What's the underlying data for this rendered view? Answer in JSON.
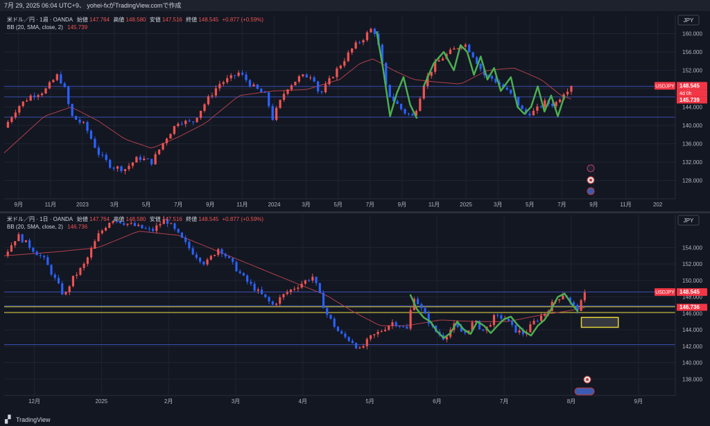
{
  "header": {
    "caption": "7月 29, 2025 06:04 UTC+9、 yohei-fxがTradingView.comで作成"
  },
  "footer": {
    "brand": "TradingView"
  },
  "currency_button": "JPY",
  "colors": {
    "bg": "#131722",
    "grid": "#1f2433",
    "up": "#ef5350",
    "down": "#2962ff",
    "bb": "#b0404a",
    "hline": "#3a4fb0",
    "yellow": "#e6d63a",
    "wave": "#4caf50",
    "price_tag": "#f23645"
  },
  "top_panel": {
    "legend_line1": {
      "symbol": "米ドル／円 · 1週 · OANDA",
      "o_label": "始値",
      "o": "147.764",
      "h_label": "高値",
      "h": "148.580",
      "l_label": "安値",
      "l": "147.516",
      "c_label": "終値",
      "c": "148.545",
      "chg": "+0.877 (+0.59%)"
    },
    "legend_line2": {
      "study": "BB (20, SMA, close, 2)",
      "value": "145.739"
    },
    "tag_symbol": "USDJPY",
    "tag_price": "148.545",
    "tag_countdown": "4d 0h",
    "tag_bb": "145.739"
  },
  "bottom_panel": {
    "legend_line1": {
      "symbol": "米ドル／円 · 1日 · OANDA",
      "o_label": "始値",
      "o": "147.764",
      "h_label": "高値",
      "h": "148.580",
      "l_label": "安値",
      "l": "147.516",
      "c_label": "終値",
      "c": "148.545",
      "chg": "+0.877 (+0.59%)"
    },
    "legend_line2": {
      "study": "BB (20, SMA, close, 2)",
      "value": "146.736"
    },
    "tag_symbol": "USDJPY",
    "tag_price": "148.545",
    "tag_bb": "146.736"
  },
  "chart_data": [
    {
      "type": "candlestick",
      "title": "米ドル／円 · 1週 · OANDA",
      "ylim": [
        124,
        164
      ],
      "y_ticks": [
        128.0,
        132.0,
        136.0,
        140.0,
        144.0,
        148.0,
        152.0,
        156.0,
        160.0
      ],
      "x_ticks": [
        "9月",
        "11月",
        "2023",
        "3月",
        "5月",
        "7月",
        "9月",
        "11月",
        "2024",
        "3月",
        "5月",
        "7月",
        "9月",
        "11月",
        "2025",
        "3月",
        "5月",
        "7月",
        "9月",
        "11月",
        "202"
      ],
      "horizontal_lines": [
        148.5,
        146.2,
        141.8
      ],
      "price_path": [
        [
          0,
          139.5
        ],
        [
          0.02,
          144
        ],
        [
          0.04,
          146.5
        ],
        [
          0.06,
          147.5
        ],
        [
          0.08,
          151
        ],
        [
          0.09,
          148
        ],
        [
          0.1,
          142
        ],
        [
          0.12,
          140
        ],
        [
          0.14,
          134
        ],
        [
          0.16,
          131
        ],
        [
          0.18,
          130.5
        ],
        [
          0.2,
          133
        ],
        [
          0.22,
          132
        ],
        [
          0.24,
          137
        ],
        [
          0.26,
          141
        ],
        [
          0.28,
          140.5
        ],
        [
          0.3,
          145
        ],
        [
          0.32,
          149
        ],
        [
          0.34,
          150.5
        ],
        [
          0.35,
          151.5
        ],
        [
          0.37,
          148.5
        ],
        [
          0.39,
          146.5
        ],
        [
          0.4,
          141.5
        ],
        [
          0.42,
          148
        ],
        [
          0.44,
          150.5
        ],
        [
          0.46,
          151
        ],
        [
          0.47,
          146.5
        ],
        [
          0.49,
          151
        ],
        [
          0.51,
          155
        ],
        [
          0.52,
          157
        ],
        [
          0.535,
          159
        ],
        [
          0.55,
          161.5
        ],
        [
          0.56,
          156
        ],
        [
          0.57,
          147.5
        ],
        [
          0.58,
          145.5
        ],
        [
          0.595,
          143
        ],
        [
          0.61,
          141.8
        ],
        [
          0.625,
          149
        ],
        [
          0.64,
          153
        ],
        [
          0.655,
          155
        ],
        [
          0.67,
          156.5
        ],
        [
          0.685,
          158
        ],
        [
          0.7,
          155
        ],
        [
          0.715,
          151
        ],
        [
          0.73,
          150
        ],
        [
          0.745,
          148
        ],
        [
          0.76,
          146
        ],
        [
          0.775,
          142.5
        ],
        [
          0.79,
          143
        ],
        [
          0.805,
          145
        ],
        [
          0.82,
          144.5
        ],
        [
          0.835,
          147.5
        ],
        [
          0.845,
          148.5
        ]
      ],
      "bb_mid": [
        [
          0.0,
          134
        ],
        [
          0.06,
          142
        ],
        [
          0.1,
          144
        ],
        [
          0.14,
          141
        ],
        [
          0.18,
          137
        ],
        [
          0.22,
          135
        ],
        [
          0.26,
          137.5
        ],
        [
          0.3,
          140.5
        ],
        [
          0.35,
          146.5
        ],
        [
          0.4,
          147.5
        ],
        [
          0.45,
          147.8
        ],
        [
          0.5,
          150
        ],
        [
          0.53,
          153.5
        ],
        [
          0.55,
          154.5
        ],
        [
          0.58,
          152
        ],
        [
          0.61,
          150
        ],
        [
          0.64,
          149.5
        ],
        [
          0.68,
          149
        ],
        [
          0.72,
          152
        ],
        [
          0.76,
          152.5
        ],
        [
          0.8,
          150
        ],
        [
          0.83,
          146.5
        ],
        [
          0.845,
          145.7
        ]
      ],
      "wave_segments": [
        [
          [
            0.555,
            160.5
          ],
          [
            0.565,
            152
          ],
          [
            0.575,
            142
          ],
          [
            0.585,
            147
          ],
          [
            0.595,
            150.5
          ],
          [
            0.605,
            144.5
          ],
          [
            0.615,
            141.5
          ]
        ],
        [
          [
            0.625,
            148.5
          ],
          [
            0.64,
            153.5
          ],
          [
            0.655,
            156
          ],
          [
            0.67,
            152
          ],
          [
            0.68,
            157.5
          ],
          [
            0.69,
            156
          ],
          [
            0.7,
            151
          ],
          [
            0.71,
            155
          ],
          [
            0.72,
            150
          ],
          [
            0.73,
            152.5
          ],
          [
            0.74,
            147.5
          ],
          [
            0.755,
            150.5
          ],
          [
            0.765,
            144
          ],
          [
            0.775,
            142.5
          ],
          [
            0.785,
            144
          ],
          [
            0.795,
            148.5
          ],
          [
            0.805,
            143
          ],
          [
            0.815,
            146.5
          ],
          [
            0.825,
            142
          ],
          [
            0.835,
            146.5
          ]
        ]
      ],
      "last_price": 148.545,
      "bb_value": 145.739
    },
    {
      "type": "candlestick",
      "title": "米ドル／円 · 1日 · OANDA",
      "ylim": [
        136,
        158
      ],
      "y_ticks": [
        138.0,
        140.0,
        142.0,
        144.0,
        146.0,
        148.0,
        150.0,
        152.0,
        154.0
      ],
      "x_ticks": [
        "12月",
        "2025",
        "2月",
        "3月",
        "4月",
        "5月",
        "6月",
        "7月",
        "8月",
        "9月"
      ],
      "horizontal_lines": [
        148.6,
        146.9,
        142.2
      ],
      "yellow_lines": [
        146.8,
        146.1
      ],
      "box": {
        "x0": 0.86,
        "x1": 0.915,
        "y0": 145.5,
        "y1": 144.3
      },
      "price_path": [
        [
          0.0,
          153
        ],
        [
          0.02,
          155.5
        ],
        [
          0.04,
          154
        ],
        [
          0.06,
          152.5
        ],
        [
          0.08,
          149.5
        ],
        [
          0.09,
          148
        ],
        [
          0.1,
          150
        ],
        [
          0.12,
          152
        ],
        [
          0.14,
          155.5
        ],
        [
          0.16,
          157.5
        ],
        [
          0.18,
          157
        ],
        [
          0.2,
          156.5
        ],
        [
          0.22,
          156
        ],
        [
          0.24,
          157.5
        ],
        [
          0.26,
          155.5
        ],
        [
          0.28,
          153.5
        ],
        [
          0.3,
          152
        ],
        [
          0.32,
          154
        ],
        [
          0.34,
          152
        ],
        [
          0.36,
          150
        ],
        [
          0.38,
          148.5
        ],
        [
          0.4,
          147
        ],
        [
          0.42,
          148.5
        ],
        [
          0.44,
          149.5
        ],
        [
          0.46,
          150.5
        ],
        [
          0.48,
          146
        ],
        [
          0.5,
          143.5
        ],
        [
          0.52,
          142.5
        ],
        [
          0.53,
          141.5
        ],
        [
          0.545,
          143
        ],
        [
          0.56,
          143.8
        ],
        [
          0.58,
          145
        ],
        [
          0.6,
          144
        ],
        [
          0.61,
          148.2
        ],
        [
          0.625,
          146
        ],
        [
          0.64,
          144
        ],
        [
          0.655,
          143
        ],
        [
          0.67,
          144.5
        ],
        [
          0.685,
          143.5
        ],
        [
          0.7,
          145
        ],
        [
          0.715,
          143.8
        ],
        [
          0.73,
          145.5
        ],
        [
          0.745,
          145.5
        ],
        [
          0.76,
          144
        ],
        [
          0.775,
          143.5
        ],
        [
          0.79,
          145
        ],
        [
          0.805,
          146
        ],
        [
          0.82,
          147.5
        ],
        [
          0.835,
          148.5
        ],
        [
          0.845,
          147
        ],
        [
          0.855,
          146.5
        ],
        [
          0.865,
          148.2
        ]
      ],
      "bb_mid": [
        [
          0.0,
          153
        ],
        [
          0.08,
          153.5
        ],
        [
          0.14,
          154
        ],
        [
          0.2,
          156
        ],
        [
          0.26,
          155.5
        ],
        [
          0.32,
          153.5
        ],
        [
          0.38,
          151.5
        ],
        [
          0.44,
          149.5
        ],
        [
          0.48,
          148.2
        ],
        [
          0.52,
          146.2
        ],
        [
          0.56,
          144.5
        ],
        [
          0.6,
          144.5
        ],
        [
          0.65,
          145.2
        ],
        [
          0.7,
          145
        ],
        [
          0.75,
          145
        ],
        [
          0.8,
          145.8
        ],
        [
          0.84,
          146.3
        ],
        [
          0.865,
          146.7
        ]
      ],
      "wave_segments": [
        [
          [
            0.605,
            148.3
          ],
          [
            0.615,
            146.5
          ],
          [
            0.625,
            145.5
          ],
          [
            0.635,
            145
          ],
          [
            0.645,
            143.8
          ],
          [
            0.655,
            143
          ],
          [
            0.665,
            143.6
          ],
          [
            0.675,
            145
          ],
          [
            0.685,
            144
          ],
          [
            0.695,
            143.5
          ],
          [
            0.705,
            145
          ],
          [
            0.715,
            144.5
          ],
          [
            0.725,
            143.6
          ],
          [
            0.735,
            144.5
          ],
          [
            0.745,
            145.3
          ],
          [
            0.755,
            145.6
          ],
          [
            0.765,
            144.6
          ],
          [
            0.775,
            143.8
          ],
          [
            0.785,
            143.3
          ],
          [
            0.795,
            144.5
          ],
          [
            0.805,
            145.2
          ],
          [
            0.815,
            146.5
          ],
          [
            0.825,
            148
          ],
          [
            0.835,
            148.4
          ],
          [
            0.845,
            147.2
          ],
          [
            0.855,
            146.2
          ]
        ]
      ],
      "last_price": 148.545,
      "bb_value": 146.736
    }
  ]
}
